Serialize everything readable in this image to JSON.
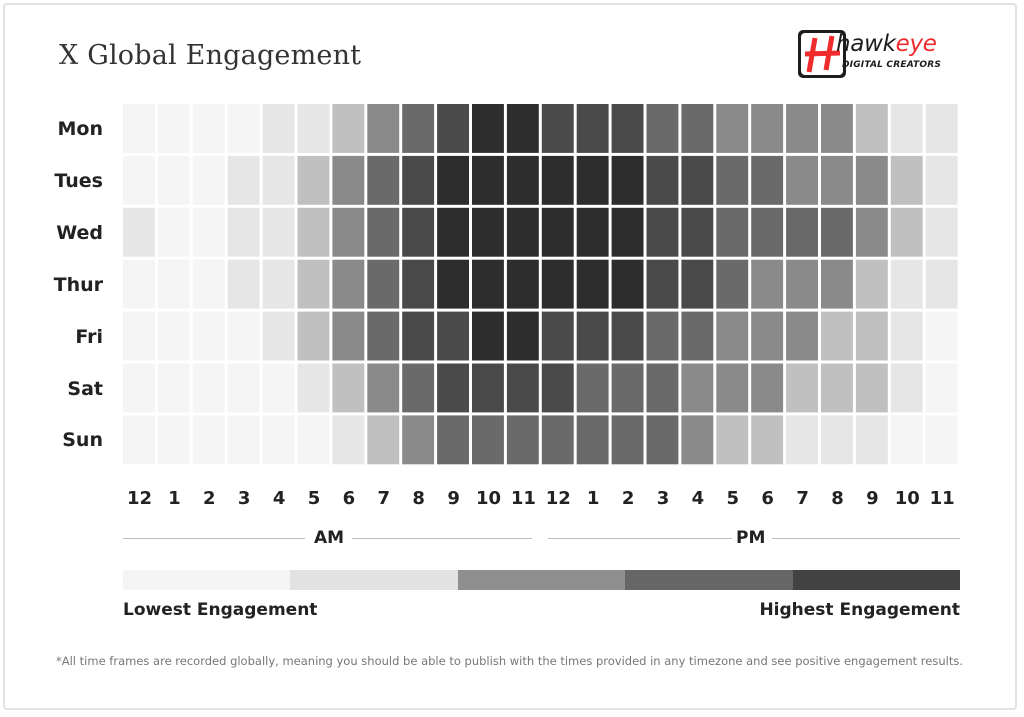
{
  "title": "X Global Engagement",
  "logo": {
    "name_dark": "hawk",
    "name_red": "eye",
    "tagline": "DIGITAL CREATORS"
  },
  "colors": {
    "level_1": "#f5f5f5",
    "level_2": "#e6e6e6",
    "level_3": "#c0c0c0",
    "level_4": "#8a8a8a",
    "level_5": "#6a6a6a",
    "level_6": "#4a4a4a",
    "level_7": "#2d2d2d",
    "brand_red": "#ef2b2d"
  },
  "chart_data": {
    "type": "heatmap",
    "title": "X Global Engagement",
    "rows": [
      "Mon",
      "Tues",
      "Wed",
      "Thur",
      "Fri",
      "Sat",
      "Sun"
    ],
    "columns": [
      "12",
      "1",
      "2",
      "3",
      "4",
      "5",
      "6",
      "7",
      "8",
      "9",
      "10",
      "11",
      "12",
      "1",
      "2",
      "3",
      "4",
      "5",
      "6",
      "7",
      "8",
      "9",
      "10",
      "11"
    ],
    "periods": [
      {
        "label": "AM",
        "span": [
          0,
          11
        ]
      },
      {
        "label": "PM",
        "span": [
          12,
          23
        ]
      }
    ],
    "scale": {
      "min": 1,
      "max": 7,
      "low_label": "Lowest Engagement",
      "high_label": "Highest Engagement"
    },
    "values": [
      [
        1,
        1,
        1,
        1,
        2,
        2,
        3,
        4,
        5,
        6,
        7,
        7,
        6,
        6,
        6,
        5,
        5,
        4,
        4,
        4,
        4,
        3,
        2,
        2
      ],
      [
        1,
        1,
        1,
        2,
        2,
        3,
        4,
        5,
        6,
        7,
        7,
        7,
        7,
        7,
        7,
        6,
        6,
        5,
        5,
        4,
        4,
        4,
        3,
        2
      ],
      [
        2,
        1,
        1,
        2,
        2,
        3,
        4,
        5,
        6,
        7,
        7,
        7,
        7,
        7,
        7,
        6,
        6,
        5,
        5,
        5,
        5,
        4,
        3,
        2
      ],
      [
        1,
        1,
        1,
        2,
        2,
        3,
        4,
        5,
        6,
        7,
        7,
        7,
        7,
        7,
        7,
        6,
        6,
        5,
        4,
        4,
        4,
        3,
        2,
        2
      ],
      [
        1,
        1,
        1,
        1,
        2,
        3,
        4,
        5,
        6,
        6,
        7,
        7,
        6,
        6,
        6,
        5,
        5,
        4,
        4,
        4,
        3,
        3,
        2,
        1
      ],
      [
        1,
        1,
        1,
        1,
        1,
        2,
        3,
        4,
        5,
        6,
        6,
        6,
        6,
        5,
        5,
        5,
        4,
        4,
        4,
        3,
        3,
        3,
        2,
        1
      ],
      [
        1,
        1,
        1,
        1,
        1,
        1,
        2,
        3,
        4,
        5,
        5,
        5,
        5,
        5,
        5,
        5,
        4,
        3,
        3,
        2,
        2,
        2,
        1,
        1
      ]
    ]
  },
  "legend": {
    "segments": [
      "#f5f5f5",
      "#e2e2e2",
      "#8f8f8f",
      "#666666",
      "#424242"
    ]
  },
  "footnote": "*All time frames are recorded globally, meaning you should be able to publish with the times provided in any timezone and see positive engagement results."
}
